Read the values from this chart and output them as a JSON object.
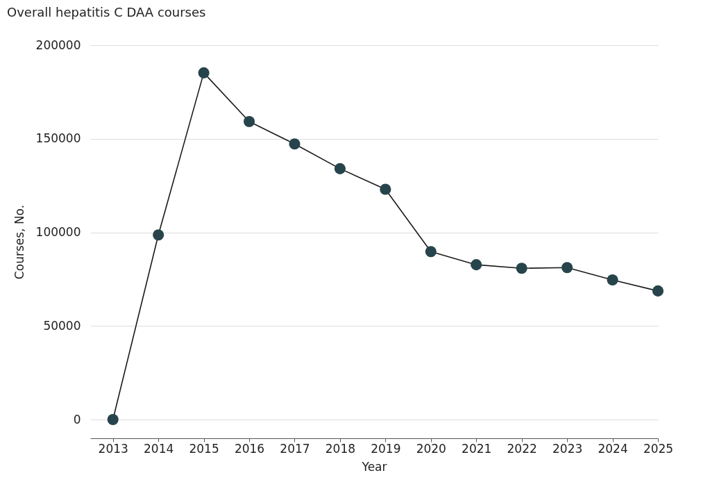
{
  "chart_data": {
    "type": "line",
    "title": "Overall hepatitis C DAA courses",
    "xlabel": "Year",
    "ylabel": "Courses, No.",
    "x": [
      2013,
      2014,
      2015,
      2016,
      2017,
      2018,
      2019,
      2020,
      2021,
      2022,
      2023,
      2024,
      2025
    ],
    "series": [
      {
        "color": "#27444c",
        "values": [
          0,
          98600,
          185200,
          159200,
          147200,
          134000,
          123000,
          89700,
          82700,
          80800,
          81200,
          74600,
          68700
        ]
      }
    ],
    "xlim": [
      2012.5,
      2025
    ],
    "xticks": [
      2013,
      2014,
      2015,
      2016,
      2017,
      2018,
      2019,
      2020,
      2021,
      2022,
      2023,
      2024,
      2025
    ],
    "ylim": [
      -10000,
      200000
    ],
    "yticks": [
      0,
      50000,
      100000,
      150000,
      200000
    ],
    "grid": "y",
    "marker": "circle",
    "line_style": "solid",
    "legend": false
  }
}
